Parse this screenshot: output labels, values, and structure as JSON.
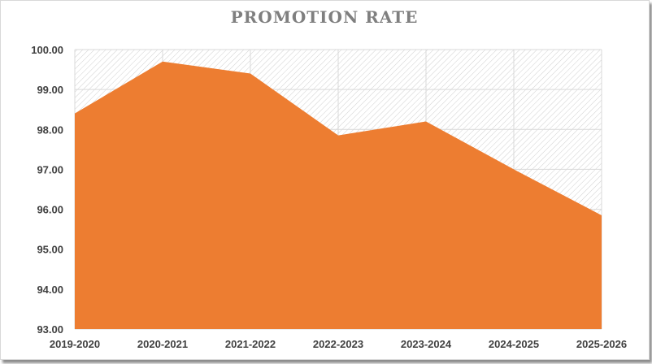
{
  "chart_data": {
    "type": "area",
    "title": "PROMOTION RATE",
    "xlabel": "",
    "ylabel": "",
    "categories": [
      "2019-2020",
      "2020-2021",
      "2021-2022",
      "2022-2023",
      "2023-2024",
      "2024-2025",
      "2025-2026"
    ],
    "series": [
      {
        "values": [
          98.4,
          99.7,
          99.4,
          97.85,
          98.2,
          97.0,
          95.85
        ]
      }
    ],
    "ylim": [
      93.0,
      100.0
    ],
    "yticks": [
      "93.00",
      "94.00",
      "95.00",
      "96.00",
      "97.00",
      "98.00",
      "99.00",
      "100.00"
    ],
    "grid": true,
    "legend": "none",
    "colors": {
      "area": "#ED7D31",
      "grid": "#d9d9d9",
      "hatch": "#cfcfcf",
      "title": "#7f7f7f",
      "tick": "#404040"
    }
  }
}
